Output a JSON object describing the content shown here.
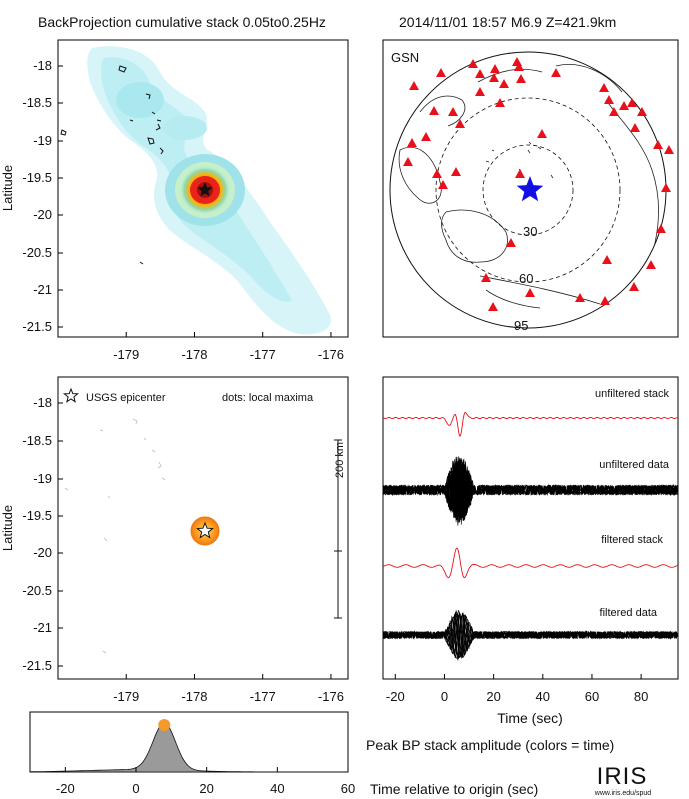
{
  "header": {
    "title": "BackProjection cumulative stack 0.05to0.25Hz",
    "event": "2014/11/01 18:57  M6.9  Z=421.9km"
  },
  "colors": {
    "station": "#e8111b",
    "epicenter_star": "#1010e6",
    "stack_trace": "#e8111b",
    "data_trace": "#000000",
    "peak_fill": "#9a9a9a",
    "hotspot": "#f59a2a"
  },
  "chart_data": [
    {
      "type": "heatmap",
      "title": "BackProjection cumulative stack 0.05to0.25Hz",
      "xlabel": "",
      "ylabel": "Latitude",
      "xlim": [
        -180,
        -175.75
      ],
      "ylim": [
        -21.65,
        -17.75
      ],
      "xticks": [
        "-179",
        "-178",
        "-177",
        "-176"
      ],
      "yticks": [
        "-18",
        "-18.5",
        "-19",
        "-19.5",
        "-20",
        "-20.5",
        "-21",
        "-21.5"
      ],
      "epicenter": {
        "lon": -177.75,
        "lat": -19.68
      },
      "peak": {
        "lon": -177.75,
        "lat": -19.68
      }
    },
    {
      "type": "scatter",
      "title": "GSN",
      "ring_labels": [
        "30",
        "60",
        "95"
      ],
      "stations": 44
    },
    {
      "type": "scatter",
      "ylabel": "Latitude",
      "xticks": [
        "-179",
        "-178",
        "-177",
        "-176"
      ],
      "yticks": [
        "-18",
        "-18.5",
        "-19",
        "-19.5",
        "-20",
        "-20.5",
        "-21",
        "-21.5"
      ],
      "legend_star": "USGS epicenter",
      "legend_dots": "dots: local maxima",
      "scale_label": "200 km",
      "points": [
        {
          "lon": -177.75,
          "lat": -19.68,
          "time": 8
        }
      ]
    },
    {
      "type": "line",
      "xlabel": "Time (sec)",
      "xlim": [
        -25,
        95
      ],
      "xticks": [
        "-20",
        "0",
        "20",
        "40",
        "60",
        "80"
      ],
      "series": [
        {
          "name": "unfiltered stack"
        },
        {
          "name": "unfiltered data"
        },
        {
          "name": "filtered stack"
        },
        {
          "name": "filtered data"
        }
      ]
    },
    {
      "type": "area",
      "title": "Peak BP stack amplitude (colors = time)",
      "xlabel": "Time relative to origin (sec)",
      "xlim": [
        -30,
        60
      ],
      "xticks": [
        "-20",
        "0",
        "20",
        "40",
        "60"
      ],
      "peak": {
        "x": 8,
        "y": 1.0
      }
    }
  ],
  "labels": {
    "ring_30": "30",
    "ring_60": "60",
    "ring_95": "95",
    "logo": "IRIS",
    "logo_url": "www.iris.edu/spud"
  }
}
